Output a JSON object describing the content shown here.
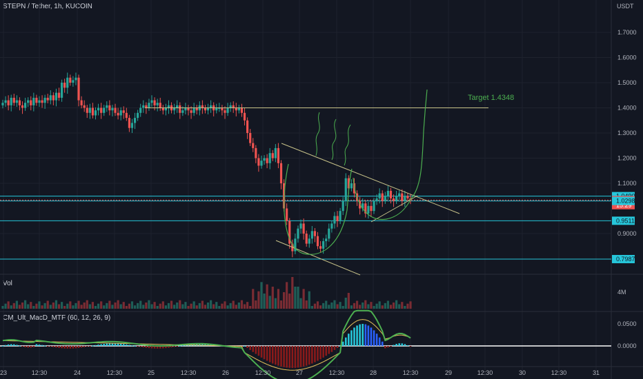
{
  "header": {
    "symbol_title": "STEPN / Tether, 1h, KUCOIN",
    "currency": "USDT"
  },
  "panes": {
    "volume_label": "Vol",
    "macd_label": "CM_Ult_MacD_MTF (60, 12, 26, 9)"
  },
  "annotation": {
    "target_text": "Target 1.4348"
  },
  "colors": {
    "background": "#131722",
    "up": "#26a69a",
    "down": "#ef5350",
    "level_line": "#26c6da",
    "trend_line": "#c9c48a",
    "drawing": "#4caf50"
  },
  "chart_data": {
    "type": "candlestick",
    "price_axis": {
      "ylim": [
        0.72,
        1.82
      ],
      "ticks": [
        "1.7000",
        "1.6000",
        "1.5000",
        "1.4000",
        "1.3000",
        "1.2000",
        "1.1000",
        "0.9000"
      ]
    },
    "time_axis": {
      "ticks": [
        "23",
        "12:30",
        "24",
        "12:30",
        "25",
        "12:30",
        "26",
        "12:30",
        "27",
        "12:30",
        "28",
        "12:30",
        "29",
        "12:30",
        "30",
        "12:30",
        "31"
      ]
    },
    "price_labels": [
      {
        "text": "1.0490",
        "value": 1.049,
        "kind": "level"
      },
      {
        "text": "1.0333",
        "value": 1.0333,
        "kind": "current"
      },
      {
        "text": "15:29",
        "value": 1.013,
        "kind": "countdown"
      },
      {
        "text": "1.0298",
        "value": 1.0298,
        "kind": "level"
      },
      {
        "text": "0.9511",
        "value": 0.9511,
        "kind": "level"
      },
      {
        "text": "0.7987",
        "value": 0.7987,
        "kind": "level"
      }
    ],
    "horizontal_levels": [
      1.049,
      1.0298,
      0.9511,
      0.7987
    ],
    "resistance_level": 1.4,
    "candles_close": [
      1.42,
      1.43,
      1.41,
      1.44,
      1.42,
      1.43,
      1.41,
      1.4,
      1.42,
      1.43,
      1.41,
      1.44,
      1.42,
      1.43,
      1.42,
      1.44,
      1.43,
      1.45,
      1.43,
      1.46,
      1.44,
      1.5,
      1.48,
      1.52,
      1.5,
      1.51,
      1.52,
      1.43,
      1.41,
      1.4,
      1.38,
      1.4,
      1.37,
      1.39,
      1.4,
      1.38,
      1.4,
      1.41,
      1.39,
      1.4,
      1.38,
      1.37,
      1.39,
      1.38,
      1.36,
      1.32,
      1.34,
      1.36,
      1.38,
      1.4,
      1.41,
      1.4,
      1.42,
      1.43,
      1.41,
      1.42,
      1.4,
      1.39,
      1.4,
      1.41,
      1.39,
      1.4,
      1.41,
      1.38,
      1.39,
      1.4,
      1.39,
      1.38,
      1.4,
      1.39,
      1.41,
      1.4,
      1.39,
      1.4,
      1.41,
      1.39,
      1.4,
      1.4,
      1.39,
      1.38,
      1.4,
      1.41,
      1.4,
      1.39,
      1.4,
      1.38,
      1.35,
      1.3,
      1.26,
      1.24,
      1.2,
      1.17,
      1.19,
      1.2,
      1.18,
      1.22,
      1.2,
      1.24,
      1.18,
      1.1,
      1.0,
      0.95,
      0.86,
      0.83,
      0.88,
      0.92,
      0.94,
      0.9,
      0.86,
      0.88,
      0.91,
      0.89,
      0.85,
      0.84,
      0.87,
      0.88,
      0.92,
      0.94,
      0.97,
      0.95,
      0.99,
      1.03,
      1.12,
      1.08,
      1.1,
      1.06,
      1.03,
      1.0,
      1.02,
      0.98,
      1.01,
      0.99,
      1.03,
      1.04,
      1.06,
      1.03,
      1.05,
      1.07,
      1.04,
      1.03,
      1.05,
      1.06,
      1.03,
      1.05,
      1.04,
      1.0333
    ],
    "volume_ylim": [
      0,
      5
    ],
    "volume_tick": "4M",
    "macd_axis": {
      "ylim": [
        -0.09,
        0.085
      ],
      "ticks": [
        "0.0500",
        "0.0000"
      ]
    }
  }
}
